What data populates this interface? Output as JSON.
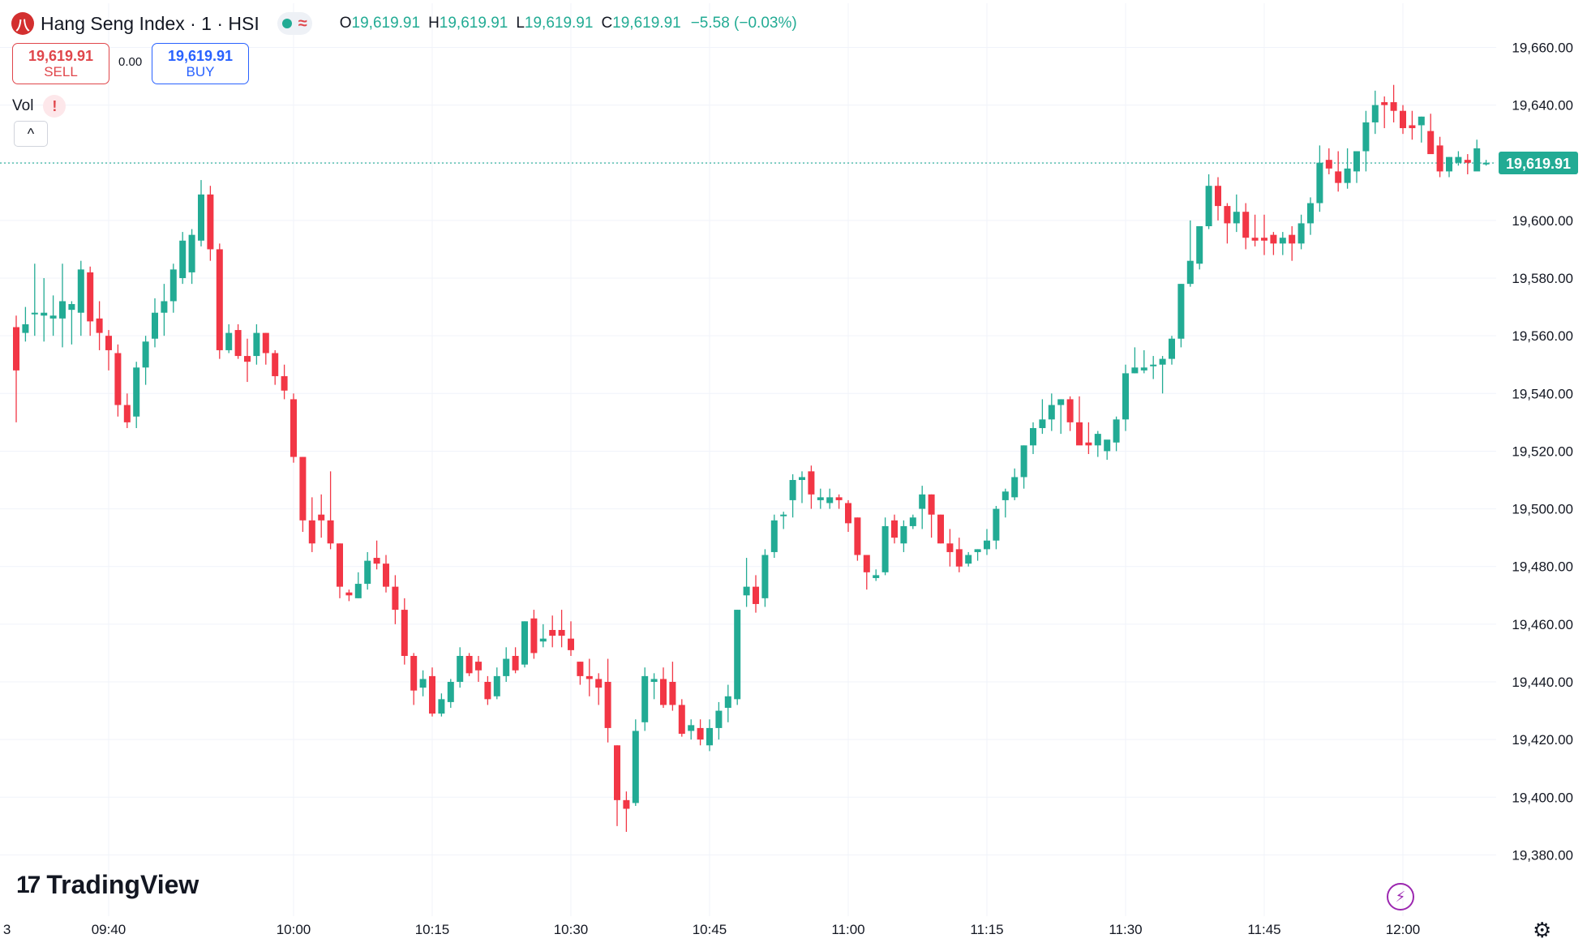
{
  "header": {
    "logo_letter": "八",
    "title": "Hang Seng Index · 1 · HSI",
    "status_icon": "market-open-dot",
    "wave_symbol": "≈",
    "ohlc": {
      "o_label": "O",
      "o": "19,619.91",
      "h_label": "H",
      "h": "19,619.91",
      "l_label": "L",
      "l": "19,619.91",
      "c_label": "C",
      "c": "19,619.91",
      "change": "−5.58 (−0.03%)"
    }
  },
  "trade": {
    "sell_price": "19,619.91",
    "sell_label": "SELL",
    "spread": "0.00",
    "buy_price": "19,619.91",
    "buy_label": "BUY"
  },
  "indicator": {
    "label": "Vol",
    "warning": "!",
    "collapse_icon": "^"
  },
  "watermark": {
    "brand": "TradingView"
  },
  "icons": {
    "bolt": "bolt-icon",
    "settings": "settings-icon"
  },
  "colors": {
    "up": "#22ab94",
    "down": "#f23645",
    "grid": "#f0f3fa",
    "price_line": "#22ab94"
  },
  "chart_data": {
    "type": "candlestick",
    "interval": "1 minute",
    "y_axis": {
      "position": "right",
      "range": [
        19370,
        19668
      ],
      "ticks": [
        "19,380.00",
        "19,400.00",
        "19,420.00",
        "19,440.00",
        "19,460.00",
        "19,480.00",
        "19,500.00",
        "19,520.00",
        "19,540.00",
        "19,560.00",
        "19,580.00",
        "19,600.00",
        "19,620.00",
        "19,640.00",
        "19,660.00"
      ],
      "last_price": "19,619.91"
    },
    "x_axis": {
      "ticks": [
        {
          "label": "3",
          "slot": -1
        },
        {
          "label": "09:40",
          "slot": 10
        },
        {
          "label": "10:00",
          "slot": 30
        },
        {
          "label": "10:15",
          "slot": 45
        },
        {
          "label": "10:30",
          "slot": 60
        },
        {
          "label": "10:45",
          "slot": 75
        },
        {
          "label": "11:00",
          "slot": 90
        },
        {
          "label": "11:15",
          "slot": 105
        },
        {
          "label": "11:30",
          "slot": 120
        },
        {
          "label": "11:45",
          "slot": 135
        },
        {
          "label": "12:00",
          "slot": 150
        }
      ]
    },
    "grid": true,
    "candles": [
      [
        19563,
        19567,
        19530,
        19548
      ],
      [
        19561,
        19570,
        19558,
        19564
      ],
      [
        19568,
        19585,
        19560,
        19568
      ],
      [
        19567,
        19580,
        19558,
        19568
      ],
      [
        19566,
        19574,
        19560,
        19567
      ],
      [
        19566,
        19585,
        19556,
        19572
      ],
      [
        19569,
        19572,
        19557,
        19571
      ],
      [
        19568,
        19586,
        19560,
        19583
      ],
      [
        19582,
        19584,
        19560,
        19565
      ],
      [
        19566,
        19572,
        19555,
        19561
      ],
      [
        19560,
        19562,
        19548,
        19555
      ],
      [
        19554,
        19557,
        19532,
        19536
      ],
      [
        19536,
        19540,
        19528,
        19530
      ],
      [
        19532,
        19551,
        19528,
        19549
      ],
      [
        19549,
        19560,
        19543,
        19558
      ],
      [
        19559,
        19573,
        19556,
        19568
      ],
      [
        19568,
        19578,
        19560,
        19572
      ],
      [
        19572,
        19585,
        19568,
        19583
      ],
      [
        19580,
        19596,
        19578,
        19593
      ],
      [
        19582,
        19597,
        19578,
        19595
      ],
      [
        19593,
        19614,
        19591,
        19609
      ],
      [
        19609,
        19612,
        19586,
        19590
      ],
      [
        19590,
        19592,
        19552,
        19555
      ],
      [
        19555,
        19564,
        19554,
        19561
      ],
      [
        19562,
        19564,
        19552,
        19553
      ],
      [
        19553,
        19559,
        19544,
        19551
      ],
      [
        19553,
        19564,
        19550,
        19561
      ],
      [
        19561,
        19561,
        19550,
        19554
      ],
      [
        19554,
        19555,
        19543,
        19546
      ],
      [
        19546,
        19550,
        19538,
        19541
      ],
      [
        19538,
        19540,
        19516,
        19518
      ],
      [
        19518,
        19518,
        19492,
        19496
      ],
      [
        19496,
        19504,
        19485,
        19488
      ],
      [
        19498,
        19505,
        19490,
        19496
      ],
      [
        19496,
        19513,
        19486,
        19488
      ],
      [
        19488,
        19488,
        19469,
        19473
      ],
      [
        19471,
        19472,
        19468,
        19470
      ],
      [
        19469,
        19478,
        19469,
        19474
      ],
      [
        19474,
        19485,
        19472,
        19482
      ],
      [
        19483,
        19489,
        19479,
        19481
      ],
      [
        19481,
        19484,
        19471,
        19473
      ],
      [
        19473,
        19477,
        19460,
        19465
      ],
      [
        19465,
        19469,
        19446,
        19449
      ],
      [
        19449,
        19450,
        19432,
        19437
      ],
      [
        19438,
        19444,
        19435,
        19441
      ],
      [
        19442,
        19445,
        19428,
        19429
      ],
      [
        19429,
        19436,
        19428,
        19434
      ],
      [
        19433,
        19441,
        19431,
        19440
      ],
      [
        19440,
        19452,
        19438,
        19449
      ],
      [
        19449,
        19450,
        19442,
        19443
      ],
      [
        19447,
        19449,
        19440,
        19444
      ],
      [
        19440,
        19442,
        19432,
        19434
      ],
      [
        19435,
        19445,
        19434,
        19442
      ],
      [
        19442,
        19452,
        19440,
        19448
      ],
      [
        19449,
        19452,
        19443,
        19444
      ],
      [
        19446,
        19461,
        19445,
        19461
      ],
      [
        19462,
        19465,
        19448,
        19450
      ],
      [
        19454,
        19460,
        19452,
        19455
      ],
      [
        19458,
        19463,
        19452,
        19456
      ],
      [
        19458,
        19465,
        19452,
        19456
      ],
      [
        19455,
        19461,
        19449,
        19451
      ],
      [
        19447,
        19447,
        19439,
        19442
      ],
      [
        19442,
        19448,
        19435,
        19441
      ],
      [
        19441,
        19443,
        19432,
        19438
      ],
      [
        19440,
        19448,
        19419,
        19424
      ],
      [
        19418,
        19418,
        19390,
        19399
      ],
      [
        19399,
        19402,
        19388,
        19396
      ],
      [
        19398,
        19427,
        19397,
        19423
      ],
      [
        19426,
        19445,
        19423,
        19442
      ],
      [
        19440,
        19443,
        19434,
        19441
      ],
      [
        19441,
        19445,
        19431,
        19432
      ],
      [
        19440,
        19447,
        19430,
        19432
      ],
      [
        19432,
        19434,
        19421,
        19422
      ],
      [
        19423,
        19427,
        19420,
        19425
      ],
      [
        19424,
        19427,
        19418,
        19420
      ],
      [
        19418,
        19427,
        19416,
        19424
      ],
      [
        19424,
        19433,
        19420,
        19430
      ],
      [
        19431,
        19439,
        19426,
        19435
      ],
      [
        19434,
        19465,
        19432,
        19465
      ],
      [
        19470,
        19483,
        19466,
        19473
      ],
      [
        19473,
        19477,
        19464,
        19467
      ],
      [
        19469,
        19486,
        19466,
        19484
      ],
      [
        19485,
        19498,
        19483,
        19496
      ],
      [
        19498,
        19499,
        19493,
        19498
      ],
      [
        19503,
        19512,
        19497,
        19510
      ],
      [
        19510,
        19513,
        19502,
        19511
      ],
      [
        19513,
        19515,
        19500,
        19505
      ],
      [
        19503,
        19507,
        19500,
        19504
      ],
      [
        19502,
        19507,
        19500,
        19504
      ],
      [
        19504,
        19505,
        19500,
        19503
      ],
      [
        19502,
        19503,
        19492,
        19495
      ],
      [
        19497,
        19497,
        19482,
        19484
      ],
      [
        19484,
        19484,
        19472,
        19478
      ],
      [
        19476,
        19479,
        19475,
        19477
      ],
      [
        19478,
        19497,
        19477,
        19494
      ],
      [
        19496,
        19498,
        19488,
        19490
      ],
      [
        19488,
        19496,
        19485,
        19494
      ],
      [
        19494,
        19498,
        19493,
        19497
      ],
      [
        19500,
        19508,
        19493,
        19505
      ],
      [
        19505,
        19505,
        19490,
        19498
      ],
      [
        19498,
        19498,
        19488,
        19488
      ],
      [
        19488,
        19493,
        19480,
        19485
      ],
      [
        19486,
        19490,
        19478,
        19480
      ],
      [
        19481,
        19485,
        19480,
        19484
      ],
      [
        19485,
        19486,
        19482,
        19486
      ],
      [
        19486,
        19493,
        19484,
        19489
      ],
      [
        19489,
        19501,
        19486,
        19500
      ],
      [
        19503,
        19507,
        19497,
        19506
      ],
      [
        19504,
        19514,
        19503,
        19511
      ],
      [
        19511,
        19522,
        19507,
        19522
      ],
      [
        19522,
        19530,
        19519,
        19528
      ],
      [
        19528,
        19538,
        19526,
        19531
      ],
      [
        19531,
        19540,
        19527,
        19536
      ],
      [
        19536,
        19538,
        19526,
        19538
      ],
      [
        19538,
        19539,
        19527,
        19530
      ],
      [
        19530,
        19539,
        19524,
        19522
      ],
      [
        19523,
        19530,
        19519,
        19522
      ],
      [
        19522,
        19527,
        19518,
        19526
      ],
      [
        19520,
        19523,
        19517,
        19524
      ],
      [
        19523,
        19532,
        19520,
        19531
      ],
      [
        19531,
        19550,
        19527,
        19547
      ],
      [
        19547,
        19556,
        19547,
        19549
      ],
      [
        19548,
        19555,
        19547,
        19549
      ],
      [
        19550,
        19553,
        19545,
        19550
      ],
      [
        19550,
        19553,
        19540,
        19552
      ],
      [
        19552,
        19560,
        19550,
        19559
      ],
      [
        19559,
        19578,
        19556,
        19578
      ],
      [
        19578,
        19600,
        19577,
        19586
      ],
      [
        19585,
        19596,
        19583,
        19598
      ],
      [
        19598,
        19616,
        19597,
        19612
      ],
      [
        19612,
        19615,
        19600,
        19605
      ],
      [
        19605,
        19606,
        19592,
        19599
      ],
      [
        19599,
        19609,
        19596,
        19603
      ],
      [
        19603,
        19606,
        19590,
        19594
      ],
      [
        19594,
        19602,
        19591,
        19593
      ],
      [
        19594,
        19602,
        19588,
        19593
      ],
      [
        19595,
        19596,
        19588,
        19592
      ],
      [
        19592,
        19596,
        19588,
        19594
      ],
      [
        19595,
        19598,
        19586,
        19592
      ],
      [
        19592,
        19602,
        19590,
        19599
      ],
      [
        19599,
        19608,
        19595,
        19606
      ],
      [
        19606,
        19626,
        19603,
        19620
      ],
      [
        19621,
        19625,
        19616,
        19618
      ],
      [
        19617,
        19624,
        19610,
        19613
      ],
      [
        19613,
        19625,
        19611,
        19618
      ],
      [
        19617,
        19624,
        19613,
        19624
      ],
      [
        19624,
        19638,
        19617,
        19634
      ],
      [
        19634,
        19645,
        19630,
        19640
      ],
      [
        19641,
        19643,
        19632,
        19640
      ],
      [
        19641,
        19647,
        19634,
        19638
      ],
      [
        19638,
        19640,
        19630,
        19632
      ],
      [
        19633,
        19638,
        19628,
        19632
      ],
      [
        19633,
        19636,
        19627,
        19636
      ],
      [
        19631,
        19637,
        19624,
        19623
      ],
      [
        19626,
        19629,
        19615,
        19617
      ],
      [
        19617,
        19622,
        19615,
        19622
      ],
      [
        19620,
        19624,
        19619,
        19622
      ],
      [
        19621,
        19623,
        19616,
        19620
      ],
      [
        19617,
        19628,
        19618,
        19625
      ],
      [
        19620,
        19621,
        19619,
        19620
      ]
    ]
  }
}
